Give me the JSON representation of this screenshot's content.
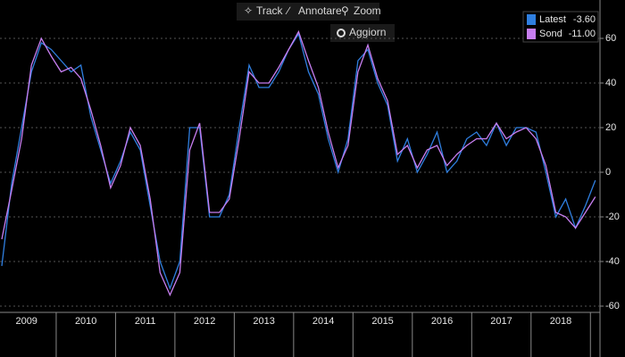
{
  "toolbar": {
    "buttons": [
      "Track",
      "Annotare",
      "Zoom"
    ],
    "refresh": "Aggiorn"
  },
  "chart_data": {
    "type": "line",
    "categories": [
      null,
      null,
      null,
      "2009",
      null,
      null,
      null,
      null,
      null,
      "2010",
      null,
      null,
      null,
      null,
      null,
      "2011",
      null,
      null,
      null,
      null,
      null,
      "2012",
      null,
      null,
      null,
      null,
      null,
      "2013",
      null,
      null,
      null,
      null,
      null,
      "2014",
      null,
      null,
      null,
      null,
      null,
      "2015",
      null,
      null,
      null,
      null,
      null,
      "2016",
      null,
      null,
      null,
      null,
      null,
      "2017",
      null,
      null,
      null,
      null,
      null,
      "2018",
      null,
      null,
      null
    ],
    "series": [
      {
        "name": "Latest",
        "color": "#2f7fe0",
        "last_label": "-3.60",
        "values": [
          -42,
          -5,
          20,
          45,
          58,
          55,
          50,
          45,
          48,
          25,
          10,
          -5,
          5,
          18,
          10,
          -15,
          -40,
          -52,
          -40,
          20,
          20,
          -20,
          -20,
          -10,
          20,
          48,
          38,
          38,
          45,
          55,
          62,
          45,
          35,
          15,
          0,
          15,
          50,
          55,
          40,
          30,
          5,
          15,
          0,
          8,
          18,
          0,
          5,
          15,
          18,
          12,
          22,
          12,
          20,
          20,
          18,
          0,
          -20,
          -12,
          -25,
          -15,
          -3.6
        ]
      },
      {
        "name": "Sond",
        "color": "#c77ef0",
        "last_label": "-11.00",
        "values": [
          -30,
          -8,
          15,
          48,
          60,
          52,
          45,
          47,
          42,
          28,
          12,
          -7,
          3,
          20,
          12,
          -12,
          -45,
          -55,
          -45,
          10,
          22,
          -18,
          -18,
          -12,
          15,
          45,
          40,
          40,
          47,
          55,
          63,
          50,
          38,
          18,
          2,
          12,
          45,
          57,
          42,
          32,
          8,
          12,
          2,
          10,
          12,
          3,
          8,
          12,
          15,
          15,
          22,
          15,
          18,
          20,
          15,
          3,
          -18,
          -20,
          -25,
          -18,
          -11
        ]
      }
    ],
    "ylim": [
      -62.8,
      66
    ],
    "yticks": [
      60,
      40,
      20,
      0,
      -20,
      -40,
      -60
    ],
    "grid": true,
    "legend": "top-right"
  }
}
